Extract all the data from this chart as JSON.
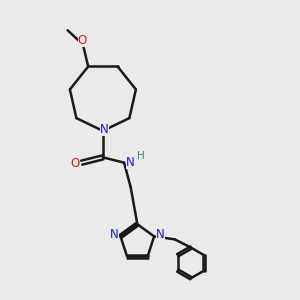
{
  "bg_color": "#eaeaea",
  "bond_color": "#1a1a1a",
  "N_color": "#1a1acc",
  "O_color": "#cc1a1a",
  "H_color": "#3a8080",
  "line_width": 1.8,
  "figsize": [
    3.0,
    3.0
  ],
  "dpi": 100,
  "xlim": [
    0,
    10
  ],
  "ylim": [
    0,
    10
  ]
}
